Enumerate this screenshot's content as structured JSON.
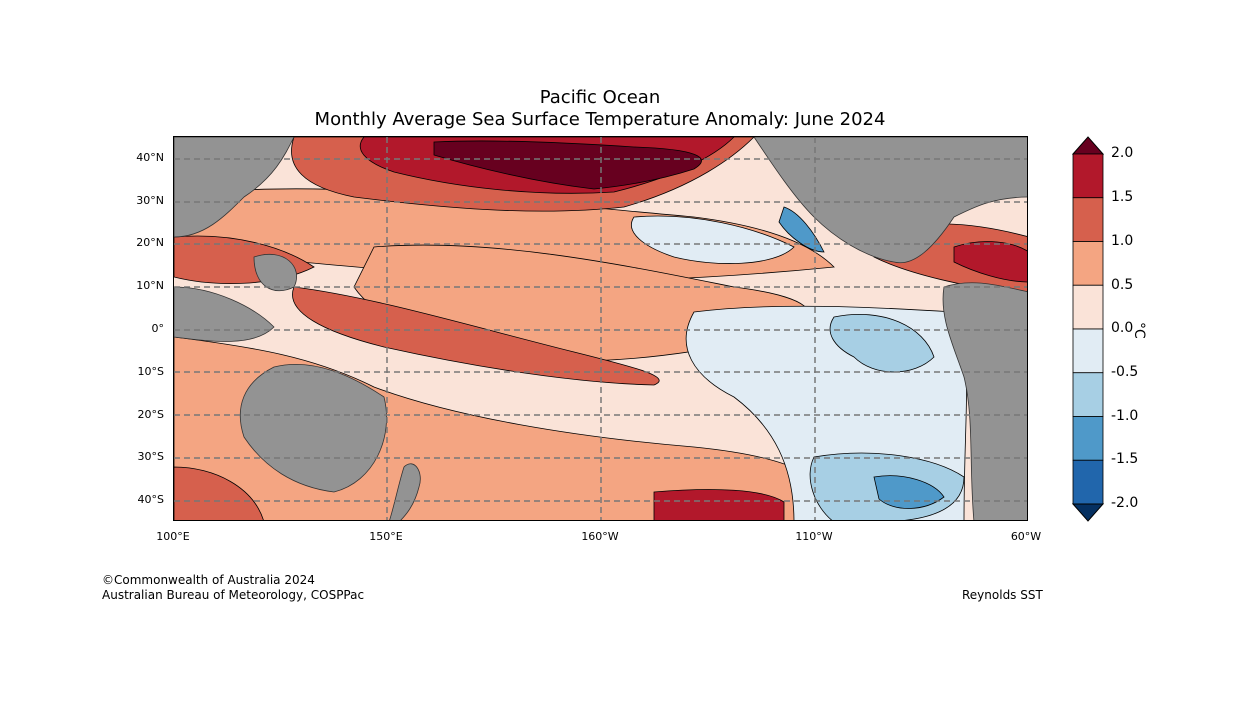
{
  "title": {
    "line1": "Pacific Ocean",
    "line2": "Monthly Average Sea Surface Temperature Anomaly: June 2024"
  },
  "map": {
    "lat_labels": [
      "40°N",
      "30°N",
      "20°N",
      "10°N",
      "0°",
      "10°S",
      "20°S",
      "30°S",
      "40°S"
    ],
    "lon_labels": [
      "100°E",
      "150°E",
      "160°W",
      "110°W",
      "60°W"
    ]
  },
  "colorbar": {
    "unit": "°C",
    "ticks": [
      "2.0",
      "1.5",
      "1.0",
      "0.5",
      "0.0",
      "-0.5",
      "-1.0",
      "-1.5",
      "-2.0"
    ],
    "colors": [
      "#b2182b",
      "#d6604d",
      "#f4a582",
      "#fae3d8",
      "#e1ecf4",
      "#a7cfe4",
      "#4f99c9",
      "#2166ac"
    ],
    "over_color": "#67001f",
    "under_color": "#053061",
    "land_color": "#939393"
  },
  "footer": {
    "copyright": "©Commonwealth of Australia 2024",
    "agency": "Australian Bureau of Meteorology, COSPPac",
    "source": "Reynolds SST"
  }
}
